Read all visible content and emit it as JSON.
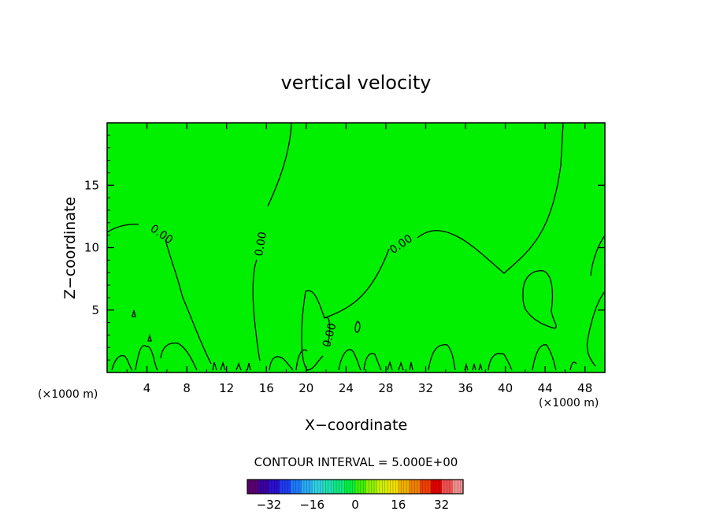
{
  "chart_data": {
    "type": "contour",
    "title": "vertical velocity",
    "xlabel": "X−coordinate",
    "ylabel": "Z−coordinate",
    "x_unit_left": "(×1000 m)",
    "x_unit_right": "(×1000 m)",
    "xlim": [
      0,
      50
    ],
    "ylim": [
      0,
      20
    ],
    "x_ticks": [
      4,
      8,
      12,
      16,
      20,
      24,
      28,
      32,
      36,
      40,
      44,
      48
    ],
    "y_ticks": [
      5,
      10,
      15
    ],
    "field_color": "#00f000",
    "contour_labels": [
      {
        "text": "0.00",
        "x": 5.5,
        "y": 11.1,
        "angle": 35
      },
      {
        "text": "0.00",
        "x": 15.4,
        "y": 10.3,
        "angle": -80
      },
      {
        "text": "0.00",
        "x": 29.5,
        "y": 10.3,
        "angle": -35
      },
      {
        "text": "0.00",
        "x": 22.3,
        "y": 3.0,
        "angle": -75
      }
    ],
    "contour_interval_text": "CONTOUR INTERVAL = 5.000E+00",
    "colorbar": {
      "range": [
        -40,
        40
      ],
      "tick_values": [
        -32,
        -16,
        0,
        16,
        32
      ],
      "tick_labels": [
        "−32",
        "−16",
        "0",
        "16",
        "32"
      ],
      "colors": [
        "#5a0070",
        "#3c00a0",
        "#2a10d0",
        "#1e3cf0",
        "#1e78f8",
        "#28aaf0",
        "#30d0e0",
        "#20e0b0",
        "#10e880",
        "#00f040",
        "#40f000",
        "#90f000",
        "#d0f000",
        "#f0e000",
        "#f0b000",
        "#f08000",
        "#f04000",
        "#e00000",
        "#f05050",
        "#f09090"
      ]
    }
  }
}
